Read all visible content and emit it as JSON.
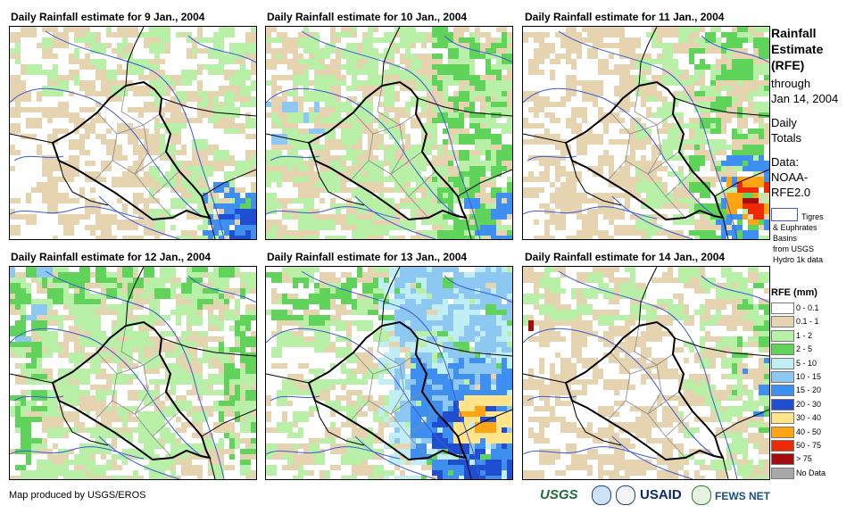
{
  "panels": [
    {
      "title": "Daily Rainfall estimate for 9 Jan., 2004"
    },
    {
      "title": "Daily Rainfall estimate for 10 Jan., 2004"
    },
    {
      "title": "Daily Rainfall estimate for 11 Jan., 2004"
    },
    {
      "title": "Daily Rainfall estimate for 12 Jan., 2004"
    },
    {
      "title": "Daily Rainfall estimate for 13 Jan., 2004"
    },
    {
      "title": "Daily Rainfall estimate for 14 Jan., 2004"
    }
  ],
  "sidebar": {
    "title_lines": [
      "Rainfall",
      "Estimate",
      "(RFE)"
    ],
    "through_lines": [
      "through",
      "Jan 14, 2004"
    ],
    "daily_lines": [
      "Daily",
      "Totals"
    ],
    "data_lines": [
      "Data:",
      "NOAA-",
      "RFE2.0"
    ],
    "basin_lines": [
      "Tigres",
      "& Euphrates",
      "Basins",
      "from USGS",
      "Hydro 1k data"
    ]
  },
  "legend": {
    "title": "RFE (mm)",
    "items": [
      {
        "label": "0 - 0.1",
        "color": "#ffffff"
      },
      {
        "label": "0.1 - 1",
        "color": "#e6d3b0"
      },
      {
        "label": "1 - 2",
        "color": "#b8f0a8"
      },
      {
        "label": "2 - 5",
        "color": "#5fd35a"
      },
      {
        "label": "5 - 10",
        "color": "#bfeff5"
      },
      {
        "label": "10 - 15",
        "color": "#8cc8f2"
      },
      {
        "label": "15 - 20",
        "color": "#3f8ff0"
      },
      {
        "label": "20 - 30",
        "color": "#1f4fd0"
      },
      {
        "label": "30 - 40",
        "color": "#ffe48a"
      },
      {
        "label": "40 - 50",
        "color": "#ffa514"
      },
      {
        "label": "50 - 75",
        "color": "#ee2a06"
      },
      {
        "label": "> 75",
        "color": "#a30d0d"
      },
      {
        "label": "No Data",
        "color": "#a8a8a8"
      }
    ]
  },
  "footer": {
    "credit": "Map produced by USGS/EROS",
    "logos": {
      "usgs": "USGS",
      "usaid": "USAID",
      "fews": "FEWS NET"
    }
  }
}
